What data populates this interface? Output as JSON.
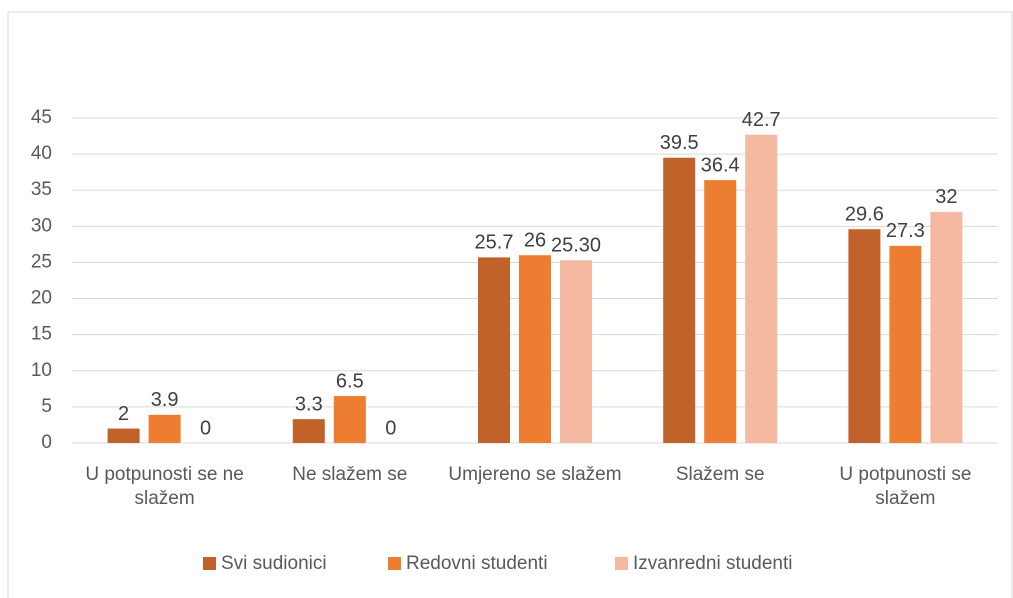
{
  "chart_data": {
    "type": "bar",
    "categories": [
      "U potpunosti se ne slažem",
      "Ne slažem se",
      "Umjereno se slažem",
      "Slažem se",
      "U potpunosti se slažem"
    ],
    "series": [
      {
        "name": "Svi sudionici",
        "color": "#c0622a",
        "values": [
          2,
          3.3,
          25.7,
          39.5,
          29.6
        ]
      },
      {
        "name": "Redovni studenti",
        "color": "#ed7d31",
        "values": [
          3.9,
          6.5,
          26,
          36.4,
          27.3
        ]
      },
      {
        "name": "Izvanredni studenti",
        "color": "#f4b9a0",
        "values": [
          0,
          0,
          25.3,
          42.7,
          32
        ],
        "value_labels": [
          "0",
          "0",
          "25.30",
          "42.7",
          "32"
        ]
      }
    ],
    "ylim": [
      0,
      45
    ],
    "yticks": [
      0,
      5,
      10,
      15,
      20,
      25,
      30,
      35,
      40,
      45
    ],
    "grid": true,
    "legend": "bottom"
  }
}
